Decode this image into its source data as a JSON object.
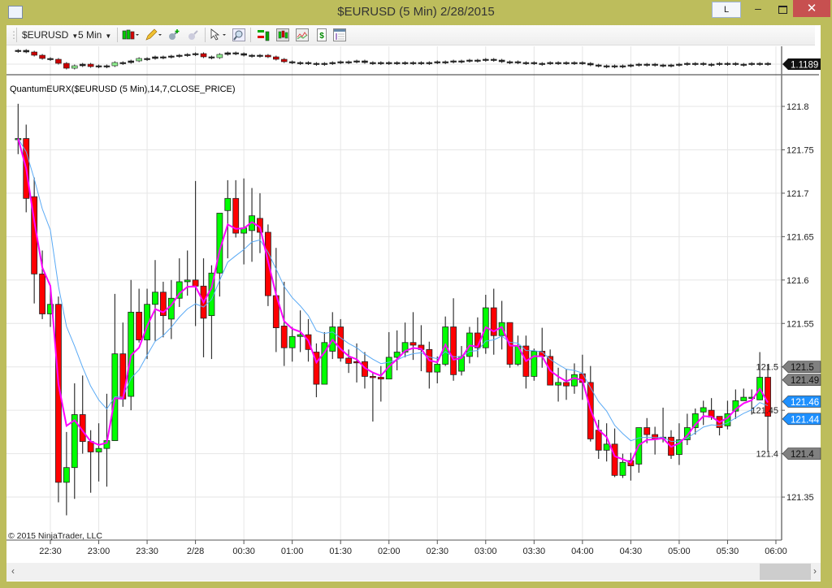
{
  "window": {
    "title": "$EURUSD (5 Min)  2/28/2015",
    "l_button": "L",
    "minimize": "‒",
    "close": "✕"
  },
  "toolbar": {
    "instrument": "$EURUSD",
    "interval": "5 Min",
    "icons": [
      "bar-type-icon",
      "drawing-pencil-icon",
      "add-indicator-icon",
      "remove-indicator-icon",
      "cursor-icon",
      "zoom-icon",
      "strategy-icon",
      "chart-style-icon",
      "properties-icon",
      "dollar-icon",
      "data-box-icon"
    ]
  },
  "mini_panel": {
    "price_marker": "1.1189",
    "closes": [
      1.1206,
      1.1204,
      1.12,
      1.1196,
      1.1195,
      1.119,
      1.1184,
      1.1187,
      1.1189,
      1.1186,
      1.1187,
      1.1187,
      1.1191,
      1.1191,
      1.1193,
      1.1196,
      1.1196,
      1.1198,
      1.1198,
      1.1199,
      1.12,
      1.1201,
      1.1202,
      1.1198,
      1.1197,
      1.1201,
      1.1203,
      1.1202,
      1.12,
      1.12,
      1.12,
      1.1198,
      1.1195,
      1.1192,
      1.1191,
      1.1191,
      1.119,
      1.119,
      1.119,
      1.1191,
      1.1192,
      1.1192,
      1.1193,
      1.1191,
      1.1191,
      1.1191,
      1.119,
      1.1191,
      1.1191,
      1.1191,
      1.1191,
      1.1191,
      1.1192,
      1.1192,
      1.1193,
      1.1193,
      1.1194,
      1.1194,
      1.1195,
      1.1194,
      1.1192,
      1.1192,
      1.1191,
      1.1191,
      1.119,
      1.119,
      1.1191,
      1.1191,
      1.1191,
      1.1191,
      1.119,
      1.1188,
      1.1187,
      1.1187,
      1.1186,
      1.1187,
      1.1188,
      1.1189,
      1.1189,
      1.1188,
      1.1188,
      1.1188,
      1.1189,
      1.119,
      1.119,
      1.1189,
      1.1189,
      1.119,
      1.119,
      1.1189,
      1.1189,
      1.119,
      1.119,
      1.1189
    ]
  },
  "indicator_label": "QuantumEURX($EURUSD (5 Min),14,7,CLOSE_PRICE)",
  "copyright": "© 2015 NinjaTrader, LLC",
  "colors": {
    "up": "#00ff00",
    "down": "#ff0000",
    "fast_line": "#ff00ff",
    "slow_line": "#5aaaf5",
    "window_frame": "#bdbd5c",
    "marker_gray": "#808080",
    "marker_blue": "#1e90ff"
  },
  "chart_data": {
    "type": "candlestick",
    "title": "",
    "interval_minutes": 5,
    "first_bar_time": "22:10",
    "ylim": [
      121.32,
      121.82
    ],
    "grid": true,
    "y_ticks": [
      "121.8",
      "121.75",
      "121.7",
      "121.65",
      "121.6",
      "121.55",
      "121.5",
      "121.45",
      "121.4",
      "121.35"
    ],
    "x_ticks": [
      "22:30",
      "23:00",
      "23:30",
      "2/28",
      "00:30",
      "01:00",
      "01:30",
      "02:00",
      "02:30",
      "03:00",
      "03:30",
      "04:00",
      "04:30",
      "05:00",
      "05:30",
      "06:00"
    ],
    "ohlc_order": [
      "open",
      "high",
      "low",
      "close"
    ],
    "bars": [
      [
        121.763,
        121.803,
        121.745,
        121.763
      ],
      [
        121.763,
        121.779,
        121.678,
        121.694
      ],
      [
        121.696,
        121.718,
        121.573,
        121.607
      ],
      [
        121.607,
        121.634,
        121.555,
        121.561
      ],
      [
        121.561,
        121.59,
        121.546,
        121.572
      ],
      [
        121.572,
        121.581,
        121.344,
        121.367
      ],
      [
        121.367,
        121.425,
        121.329,
        121.384
      ],
      [
        121.384,
        121.481,
        121.348,
        121.445
      ],
      [
        121.445,
        121.49,
        121.4,
        121.414
      ],
      [
        121.414,
        121.427,
        121.355,
        121.402
      ],
      [
        121.402,
        121.435,
        121.368,
        121.406
      ],
      [
        121.406,
        121.469,
        121.362,
        121.415
      ],
      [
        121.415,
        121.584,
        121.415,
        121.515
      ],
      [
        121.515,
        121.551,
        121.454,
        121.463
      ],
      [
        121.466,
        121.6,
        121.45,
        121.563
      ],
      [
        121.563,
        121.59,
        121.528,
        121.531
      ],
      [
        121.531,
        121.59,
        121.509,
        121.572
      ],
      [
        121.572,
        121.623,
        121.53,
        121.586
      ],
      [
        121.586,
        121.598,
        121.534,
        121.559
      ],
      [
        121.555,
        121.6,
        121.532,
        121.579
      ],
      [
        121.579,
        121.625,
        121.569,
        121.598
      ],
      [
        121.598,
        121.634,
        121.582,
        121.6
      ],
      [
        121.6,
        121.714,
        121.547,
        121.593
      ],
      [
        121.593,
        121.625,
        121.511,
        121.556
      ],
      [
        121.559,
        121.617,
        121.509,
        121.608
      ],
      [
        121.608,
        121.677,
        121.581,
        121.677
      ],
      [
        121.68,
        121.715,
        121.625,
        121.694
      ],
      [
        121.694,
        121.715,
        121.649,
        121.654
      ],
      [
        121.654,
        121.717,
        121.618,
        121.66
      ],
      [
        121.657,
        121.706,
        121.621,
        121.674
      ],
      [
        121.671,
        121.7,
        121.631,
        121.655
      ],
      [
        121.655,
        121.664,
        121.57,
        121.582
      ],
      [
        121.582,
        121.637,
        121.517,
        121.545
      ],
      [
        121.547,
        121.598,
        121.501,
        121.522
      ],
      [
        121.522,
        121.546,
        121.506,
        121.535
      ],
      [
        121.535,
        121.565,
        121.517,
        121.537
      ],
      [
        121.537,
        121.555,
        121.506,
        121.52
      ],
      [
        121.517,
        121.527,
        121.465,
        121.48
      ],
      [
        121.48,
        121.54,
        121.48,
        121.528
      ],
      [
        121.518,
        121.563,
        121.509,
        121.546
      ],
      [
        121.546,
        121.555,
        121.506,
        121.51
      ],
      [
        121.51,
        121.52,
        121.493,
        121.504
      ],
      [
        121.506,
        121.527,
        121.482,
        121.505
      ],
      [
        121.506,
        121.517,
        121.475,
        121.489
      ],
      [
        121.489,
        121.494,
        121.437,
        121.488
      ],
      [
        121.488,
        121.501,
        121.46,
        121.486
      ],
      [
        121.486,
        121.54,
        121.486,
        121.511
      ],
      [
        121.511,
        121.542,
        121.496,
        121.517
      ],
      [
        121.517,
        121.551,
        121.511,
        121.528
      ],
      [
        121.528,
        121.563,
        121.508,
        121.525
      ],
      [
        121.525,
        121.548,
        121.495,
        121.52
      ],
      [
        121.52,
        121.529,
        121.475,
        121.494
      ],
      [
        121.494,
        121.512,
        121.481,
        121.503
      ],
      [
        121.503,
        121.558,
        121.501,
        121.546
      ],
      [
        121.546,
        121.579,
        121.484,
        121.491
      ],
      [
        121.495,
        121.524,
        121.49,
        121.512
      ],
      [
        121.512,
        121.546,
        121.504,
        121.539
      ],
      [
        121.539,
        121.557,
        121.511,
        121.522
      ],
      [
        121.522,
        121.583,
        121.515,
        121.568
      ],
      [
        121.568,
        121.59,
        121.514,
        121.536
      ],
      [
        121.536,
        121.576,
        121.52,
        121.551
      ],
      [
        121.551,
        121.551,
        121.499,
        121.503
      ],
      [
        121.503,
        121.536,
        121.501,
        121.524
      ],
      [
        121.524,
        121.536,
        121.475,
        121.489
      ],
      [
        121.489,
        121.521,
        121.484,
        121.518
      ],
      [
        121.518,
        121.545,
        121.499,
        121.512
      ],
      [
        121.512,
        121.52,
        121.479,
        121.479
      ],
      [
        121.479,
        121.499,
        121.46,
        121.482
      ],
      [
        121.482,
        121.497,
        121.462,
        121.478
      ],
      [
        121.478,
        121.504,
        121.469,
        121.491
      ],
      [
        121.492,
        121.514,
        121.462,
        121.482
      ],
      [
        121.482,
        121.501,
        121.414,
        121.417
      ],
      [
        121.427,
        121.439,
        121.394,
        121.404
      ],
      [
        121.404,
        121.435,
        121.391,
        121.411
      ],
      [
        121.411,
        121.429,
        121.373,
        121.375
      ],
      [
        121.375,
        121.4,
        121.372,
        121.39
      ],
      [
        121.392,
        121.401,
        121.369,
        121.386
      ],
      [
        121.388,
        121.43,
        121.378,
        121.43
      ],
      [
        121.43,
        121.441,
        121.412,
        121.422
      ],
      [
        121.422,
        121.431,
        121.399,
        121.417
      ],
      [
        121.417,
        121.453,
        121.413,
        121.419
      ],
      [
        121.419,
        121.427,
        121.394,
        121.398
      ],
      [
        121.399,
        121.435,
        121.387,
        121.416
      ],
      [
        121.416,
        121.446,
        121.41,
        121.43
      ],
      [
        121.43,
        121.452,
        121.422,
        121.446
      ],
      [
        121.448,
        121.461,
        121.433,
        121.453
      ],
      [
        121.45,
        121.464,
        121.439,
        121.442
      ],
      [
        121.443,
        121.443,
        121.421,
        121.43
      ],
      [
        121.432,
        121.461,
        121.428,
        121.446
      ],
      [
        121.449,
        121.474,
        121.44,
        121.461
      ],
      [
        121.461,
        121.475,
        121.461,
        121.465
      ],
      [
        121.465,
        121.474,
        121.445,
        121.465
      ],
      [
        121.462,
        121.517,
        121.462,
        121.488
      ],
      [
        121.488,
        121.503,
        121.403,
        121.443
      ]
    ],
    "indicator_periods": {
      "slow": 14,
      "fast": 7
    },
    "price_markers": [
      {
        "label": "121.5",
        "value": 121.5,
        "style": "gray"
      },
      {
        "label": "121.49",
        "value": 121.49,
        "style": "gray"
      },
      {
        "label": "121.46",
        "value": 121.46,
        "style": "blue"
      },
      {
        "label": "121.44",
        "value": 121.44,
        "style": "blue"
      },
      {
        "label": "121.4",
        "value": 121.4,
        "style": "gray"
      }
    ]
  }
}
